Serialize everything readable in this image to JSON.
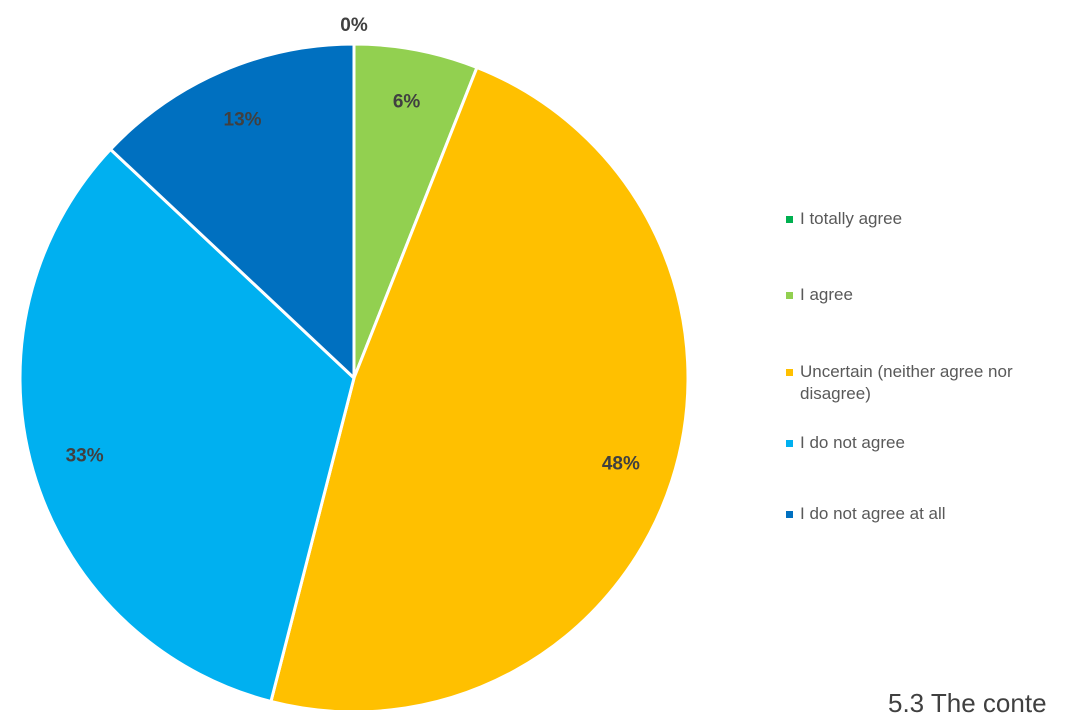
{
  "chart_data": {
    "type": "pie",
    "title": "",
    "categories": [
      "I totally agree",
      "I agree",
      "Uncertain (neither agree nor disagree)",
      "I do not agree",
      "I do not agree at all"
    ],
    "values": [
      0,
      6,
      48,
      33,
      13
    ],
    "labels": [
      "0%",
      "6%",
      "48%",
      "33%",
      "13%"
    ],
    "colors": [
      "#00B050",
      "#92D050",
      "#FFC000",
      "#00B0F0",
      "#0070C0"
    ],
    "start_angle": "top (12 o'clock), clockwise",
    "legend": {
      "position": "right",
      "items": [
        {
          "label": "I totally agree",
          "color": "#00B050"
        },
        {
          "label": "I agree",
          "color": "#92D050"
        },
        {
          "label": "Uncertain (neither agree nor disagree)",
          "lines": [
            "Uncertain (neither agree nor",
            "disagree)"
          ],
          "color": "#FFC000"
        },
        {
          "label": "I do not agree",
          "color": "#00B0F0"
        },
        {
          "label": "I do not agree at all",
          "color": "#0070C0"
        }
      ]
    }
  },
  "footer": {
    "text": "5.3 The conte"
  }
}
